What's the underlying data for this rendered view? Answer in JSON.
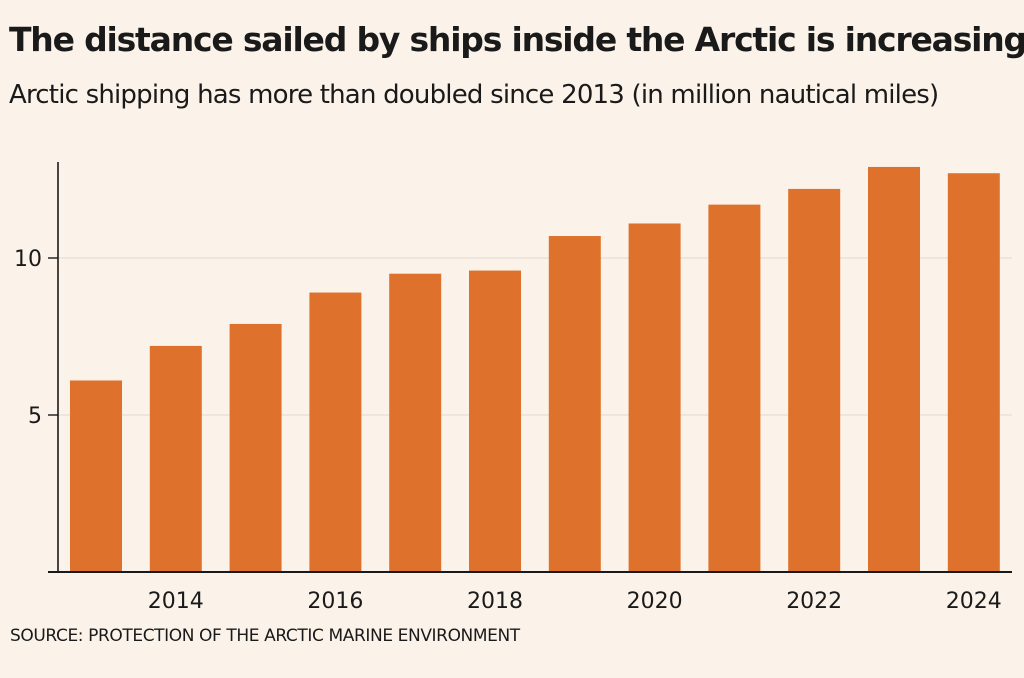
{
  "colors": {
    "background": "#fbf3ea",
    "bar": "#de722d",
    "axis": "#1a1a1a",
    "grid": "#e6ddd3"
  },
  "chart_data": {
    "type": "bar",
    "title": "The distance sailed by ships inside the Arctic is increasing",
    "subtitle": "Arctic shipping has more than doubled since 2013 (in million nautical miles)",
    "source": "SOURCE: PROTECTION OF THE ARCTIC MARINE ENVIRONMENT",
    "categories": [
      "2013",
      "2014",
      "2015",
      "2016",
      "2017",
      "2018",
      "2019",
      "2020",
      "2021",
      "2022",
      "2023",
      "2024"
    ],
    "values": [
      6.1,
      7.2,
      7.9,
      8.9,
      9.5,
      9.6,
      10.7,
      11.1,
      11.7,
      12.2,
      12.9,
      12.7
    ],
    "x_tick_labels": [
      "2014",
      "2016",
      "2018",
      "2020",
      "2022",
      "2024"
    ],
    "y_ticks": [
      5,
      10
    ],
    "ylim": [
      0,
      13
    ],
    "xlabel": "",
    "ylabel": "",
    "grid": true
  }
}
